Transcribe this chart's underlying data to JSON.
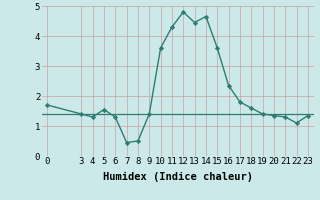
{
  "xlabel": "Humidex (Indice chaleur)",
  "x": [
    0,
    3,
    4,
    5,
    6,
    7,
    8,
    9,
    10,
    11,
    12,
    13,
    14,
    15,
    16,
    17,
    18,
    19,
    20,
    21,
    22,
    23
  ],
  "y": [
    1.7,
    1.4,
    1.3,
    1.55,
    1.3,
    0.45,
    0.5,
    1.4,
    3.6,
    4.3,
    4.8,
    4.45,
    4.65,
    3.6,
    2.35,
    1.8,
    1.6,
    1.4,
    1.35,
    1.3,
    1.1,
    1.35
  ],
  "line_color": "#2d7d72",
  "bg_color": "#cce9e9",
  "grid_color_v": "#c8a0a0",
  "grid_color_h": "#c8a0a0",
  "ylim": [
    0,
    5
  ],
  "xlim": [
    -0.5,
    23.5
  ],
  "yticks": [
    0,
    1,
    2,
    3,
    4,
    5
  ],
  "xticks": [
    0,
    3,
    4,
    5,
    6,
    7,
    8,
    9,
    10,
    11,
    12,
    13,
    14,
    15,
    16,
    17,
    18,
    19,
    20,
    21,
    22,
    23
  ],
  "hline_y": 1.4,
  "marker": "D",
  "marker_size": 2.2,
  "line_width": 1.0,
  "font_size": 6.5,
  "xlabel_font_size": 7.5,
  "xlabel_fontweight": "bold"
}
